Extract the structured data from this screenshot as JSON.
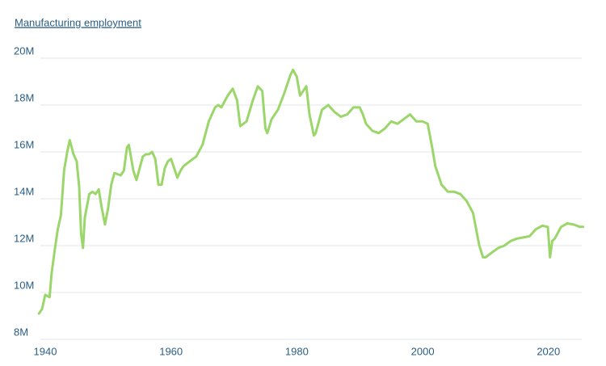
{
  "chart_data": {
    "type": "line",
    "title": "Manufacturing employment",
    "x": [
      1939,
      1939.5,
      1940,
      1940.7,
      1941,
      1941.5,
      1942,
      1942.5,
      1943,
      1943.5,
      1943.9,
      1944.5,
      1945,
      1945.4,
      1945.7,
      1946,
      1946.3,
      1947,
      1947.5,
      1948,
      1948.5,
      1949,
      1949.5,
      1950,
      1950.5,
      1951,
      1952,
      1952.5,
      1953,
      1953.3,
      1954,
      1954.5,
      1955,
      1955.5,
      1956,
      1956.5,
      1957,
      1957.5,
      1958,
      1958.5,
      1959,
      1959.5,
      1960,
      1960.5,
      1961,
      1961.5,
      1962,
      1963,
      1964,
      1965,
      1966,
      1967,
      1967.5,
      1968,
      1969,
      1969.8,
      1970.5,
      1971,
      1971.5,
      1972,
      1973,
      1973.8,
      1974.5,
      1975,
      1975.3,
      1976,
      1977,
      1978,
      1979,
      1979.4,
      1980,
      1980.5,
      1981,
      1981.5,
      1982,
      1982.7,
      1983,
      1984,
      1985,
      1986,
      1987,
      1988,
      1989,
      1990,
      1990.5,
      1991,
      1992,
      1993,
      1994,
      1995,
      1996,
      1997,
      1998,
      1999,
      2000,
      2000.8,
      2001.5,
      2002,
      2003,
      2004,
      2005,
      2006,
      2007,
      2008,
      2009,
      2009.6,
      2010,
      2011,
      2012,
      2013,
      2014,
      2015,
      2016,
      2017,
      2018,
      2019,
      2019.9,
      2020.25,
      2020.6,
      2021,
      2022,
      2023,
      2024,
      2025,
      2025.5
    ],
    "series": [
      {
        "name": "Manufacturing employment",
        "color": "#9bd66a",
        "values": [
          9.1,
          9.3,
          9.9,
          9.8,
          10.8,
          11.8,
          12.7,
          13.3,
          15.2,
          16.0,
          16.5,
          15.9,
          15.6,
          14.5,
          12.5,
          11.9,
          13.2,
          14.2,
          14.3,
          14.2,
          14.4,
          13.6,
          12.9,
          13.6,
          14.6,
          15.1,
          15.0,
          15.2,
          16.2,
          16.3,
          15.2,
          14.8,
          15.3,
          15.8,
          15.9,
          15.9,
          16.0,
          15.7,
          14.6,
          14.6,
          15.3,
          15.6,
          15.7,
          15.3,
          14.9,
          15.2,
          15.4,
          15.6,
          15.8,
          16.3,
          17.3,
          17.9,
          18.0,
          17.9,
          18.4,
          18.7,
          18.2,
          17.1,
          17.2,
          17.3,
          18.2,
          18.8,
          18.6,
          17.0,
          16.8,
          17.4,
          17.8,
          18.5,
          19.3,
          19.5,
          19.2,
          18.4,
          18.6,
          18.8,
          17.6,
          16.7,
          16.8,
          17.8,
          18.0,
          17.7,
          17.5,
          17.6,
          17.9,
          17.9,
          17.6,
          17.2,
          16.9,
          16.8,
          17.0,
          17.3,
          17.2,
          17.4,
          17.6,
          17.3,
          17.3,
          17.2,
          16.2,
          15.4,
          14.6,
          14.3,
          14.3,
          14.2,
          13.9,
          13.4,
          12.0,
          11.5,
          11.5,
          11.7,
          11.9,
          12.0,
          12.2,
          12.3,
          12.35,
          12.4,
          12.7,
          12.85,
          12.8,
          11.5,
          12.2,
          12.3,
          12.8,
          12.95,
          12.9,
          12.8,
          12.8
        ]
      }
    ],
    "xlim": [
      1938.5,
      2025.6
    ],
    "xticks": [
      1940,
      1960,
      1980,
      2000,
      2020
    ],
    "ylim": [
      8,
      20
    ],
    "yticks": [
      {
        "value": 8,
        "label": "8M"
      },
      {
        "value": 10,
        "label": "10M"
      },
      {
        "value": 12,
        "label": "12M"
      },
      {
        "value": 14,
        "label": "14M"
      },
      {
        "value": 16,
        "label": "16M"
      },
      {
        "value": 18,
        "label": "18M"
      },
      {
        "value": 20,
        "label": "20M"
      }
    ],
    "grid": true
  }
}
